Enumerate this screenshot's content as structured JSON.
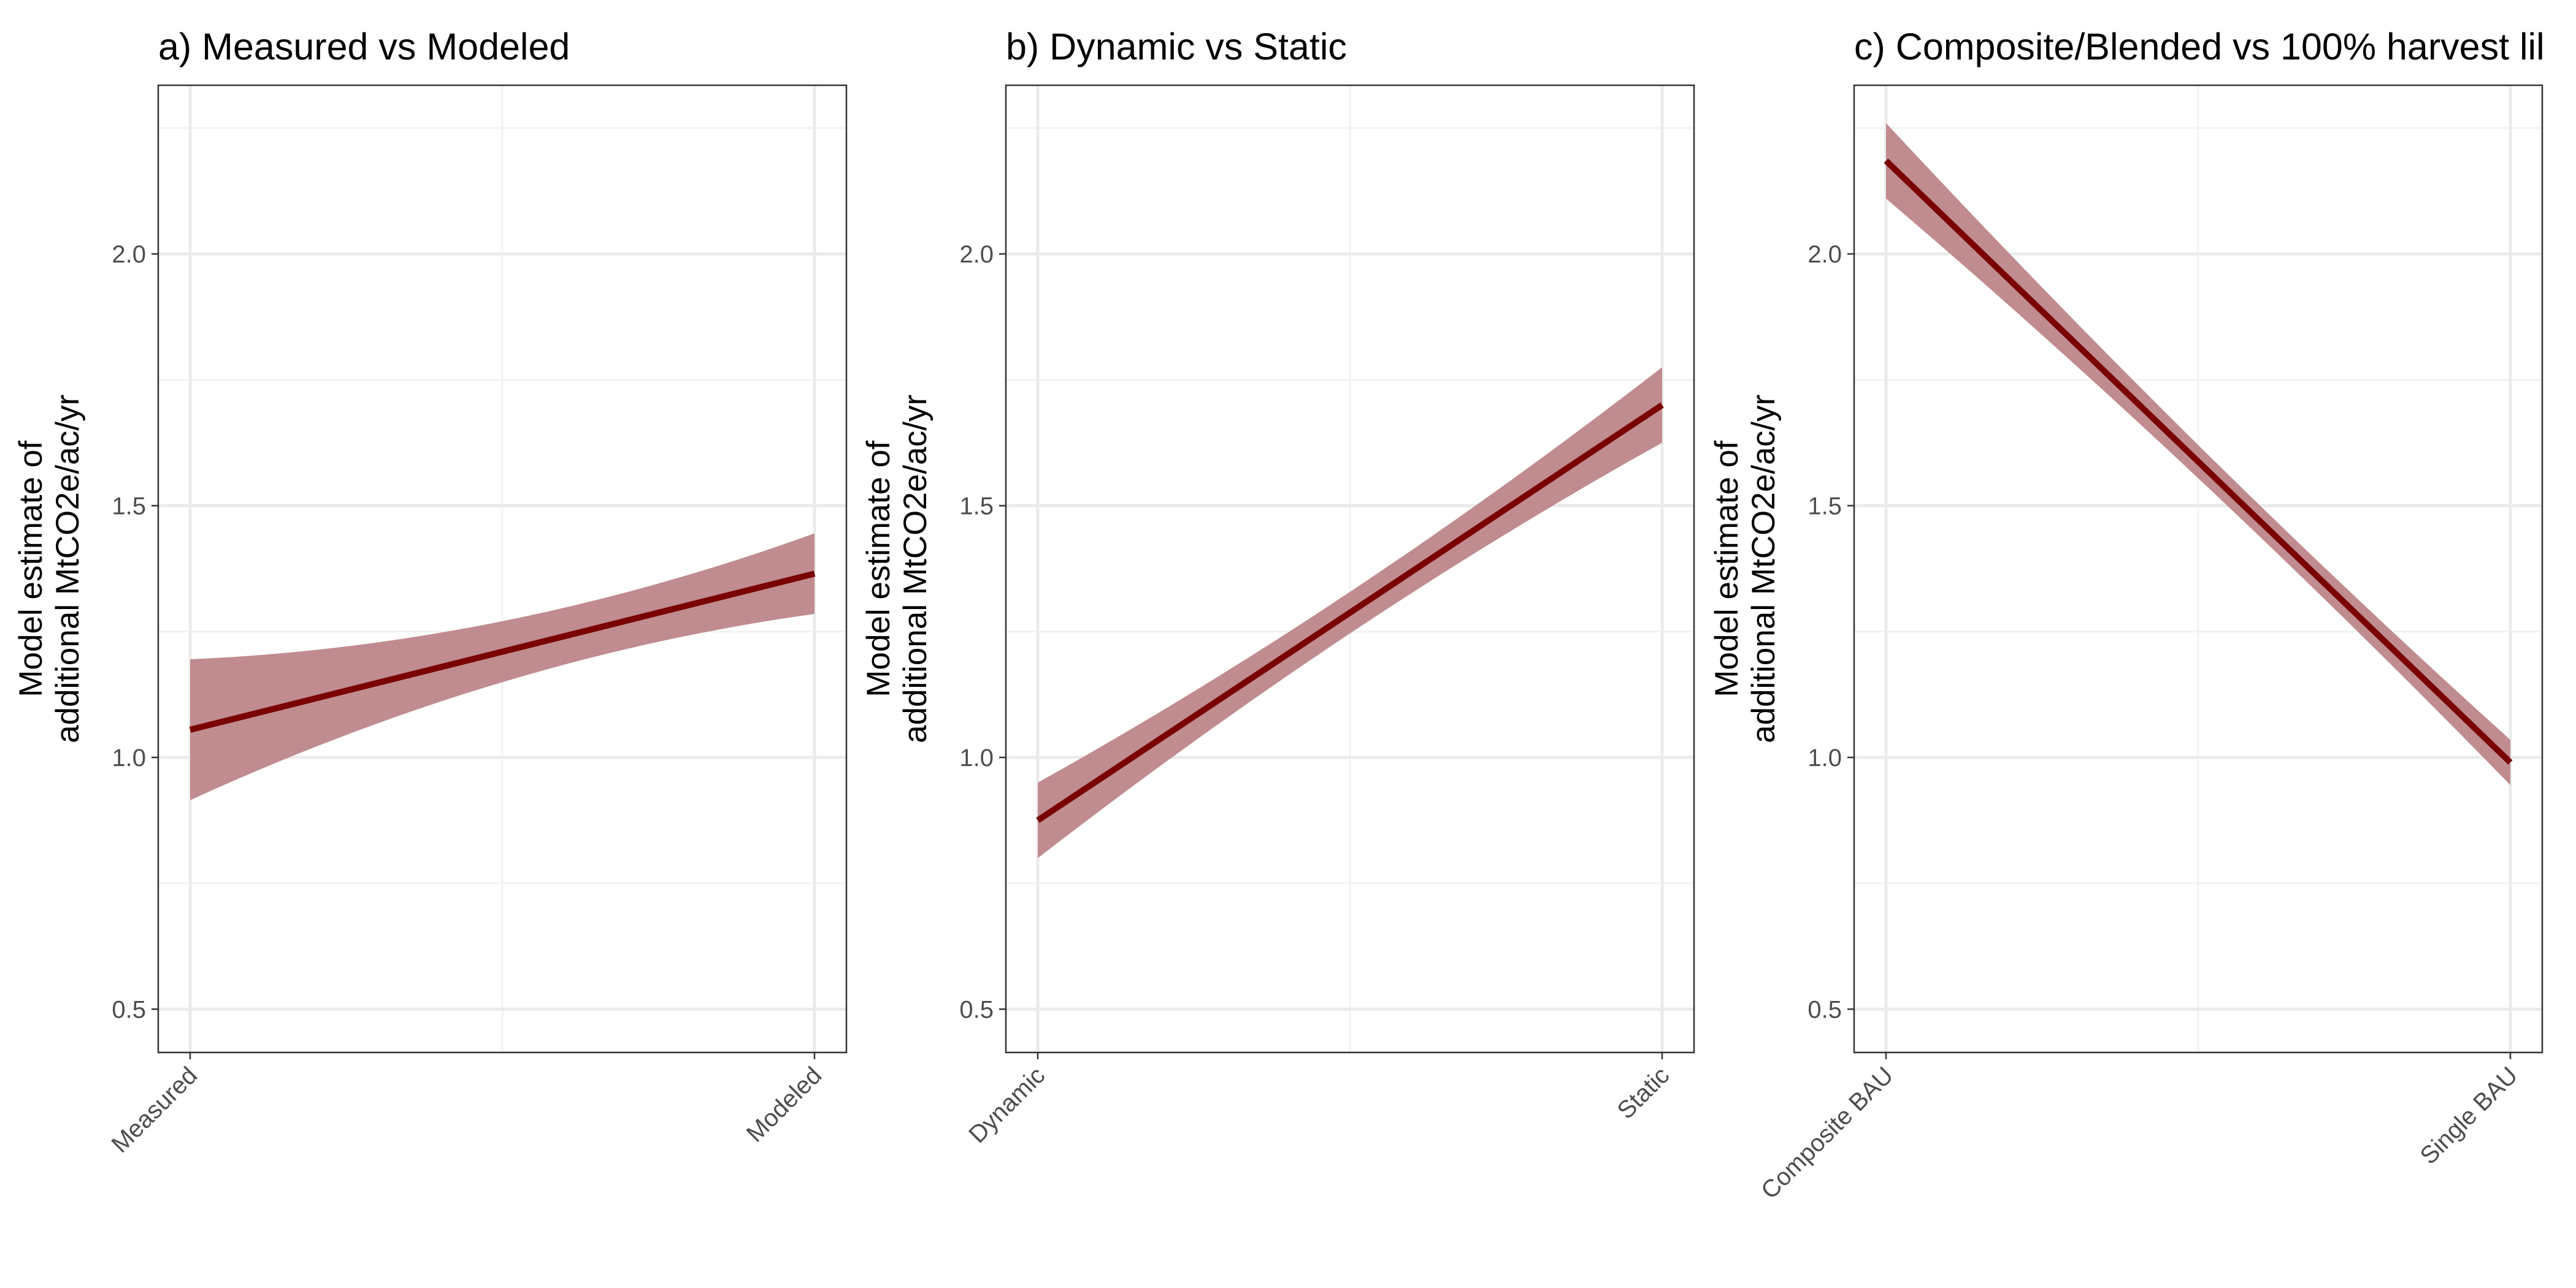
{
  "chart_data": [
    {
      "type": "line",
      "title": "a) Measured vs Modeled",
      "xlabel": "",
      "ylabel": [
        "Model estimate of",
        "additional MtCO2e/ac/yr"
      ],
      "categories": [
        "Measured",
        "Modeled"
      ],
      "x_tick_labels": [
        "Measured",
        "Modeled"
      ],
      "ylim": [
        0.414,
        2.335
      ],
      "y_ticks": [
        0.5,
        1.0,
        1.5,
        2.0
      ],
      "y_tick_labels": [
        "0.5",
        "1.0",
        "1.5",
        "2.0"
      ],
      "grid": true,
      "series": [
        {
          "values": [
            1.055,
            1.365
          ],
          "lower": [
            0.915,
            1.285
          ],
          "upper": [
            1.195,
            1.445
          ],
          "interval_shape": "curved"
        }
      ],
      "colors": {
        "line": "#7a0000",
        "ribbon": "#c08c8f"
      }
    },
    {
      "type": "line",
      "title": "b) Dynamic vs Static",
      "xlabel": "",
      "ylabel": [
        "Model estimate of",
        "additional MtCO2e/ac/yr"
      ],
      "categories": [
        "Dynamic",
        "Static"
      ],
      "x_tick_labels": [
        "Dynamic",
        "Static"
      ],
      "ylim": [
        0.414,
        2.335
      ],
      "y_ticks": [
        0.5,
        1.0,
        1.5,
        2.0
      ],
      "y_tick_labels": [
        "0.5",
        "1.0",
        "1.5",
        "2.0"
      ],
      "grid": true,
      "series": [
        {
          "values": [
            0.875,
            1.7
          ],
          "lower": [
            0.8,
            1.625
          ],
          "upper": [
            0.95,
            1.775
          ],
          "interval_shape": "curved"
        }
      ],
      "colors": {
        "line": "#7a0000",
        "ribbon": "#c08c8f"
      }
    },
    {
      "type": "line",
      "title": "c) Composite/Blended vs 100% harvest lil",
      "xlabel": "",
      "ylabel": [
        "Model estimate of",
        "additional MtCO2e/ac/yr"
      ],
      "categories": [
        "Composite BAU",
        "Single BAU"
      ],
      "x_tick_labels": [
        "Composite BAU",
        "Single BAU"
      ],
      "ylim": [
        0.414,
        2.335
      ],
      "y_ticks": [
        0.5,
        1.0,
        1.5,
        2.0
      ],
      "y_tick_labels": [
        "0.5",
        "1.0",
        "1.5",
        "2.0"
      ],
      "grid": true,
      "series": [
        {
          "values": [
            2.185,
            0.99
          ],
          "lower": [
            2.11,
            0.945
          ],
          "upper": [
            2.26,
            1.035
          ],
          "interval_shape": "curved"
        }
      ],
      "colors": {
        "line": "#7a0000",
        "ribbon": "#c08c8f"
      }
    }
  ]
}
